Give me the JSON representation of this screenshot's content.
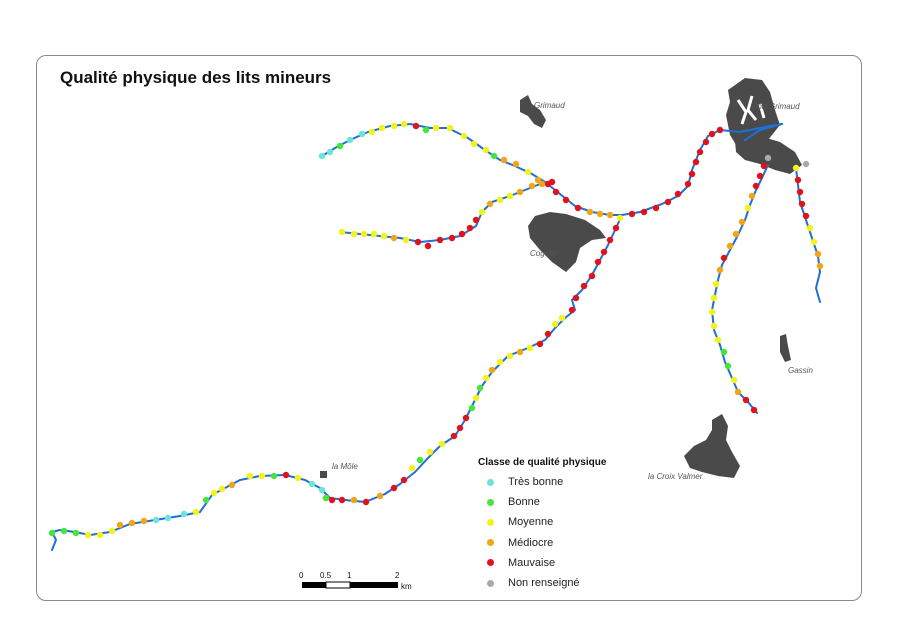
{
  "title": "Qualité physique des lits mineurs",
  "places": {
    "grimaud": "Grimaud",
    "port_grimaud": "Port Grimaud",
    "cogolin": "Cogolin",
    "gassin": "Gassin",
    "la_mole": "la Môle",
    "la_croix_valmer": "la Croix Valmer"
  },
  "legend": {
    "title": "Classe de qualité physique",
    "items": [
      {
        "label": "Très bonne",
        "color": "#6fe3d8"
      },
      {
        "label": "Bonne",
        "color": "#44e63a"
      },
      {
        "label": "Moyenne",
        "color": "#f4f21c"
      },
      {
        "label": "Médiocre",
        "color": "#f2a516"
      },
      {
        "label": "Mauvaise",
        "color": "#e0121b"
      },
      {
        "label": "Non renseigné",
        "color": "#a9a9a9"
      }
    ]
  },
  "scale": {
    "ticks": [
      "0",
      "0.5",
      "1",
      "2"
    ],
    "unit": "km"
  },
  "colors": {
    "river": "#1f6fd6",
    "urban_area": "#4a4a4a"
  }
}
